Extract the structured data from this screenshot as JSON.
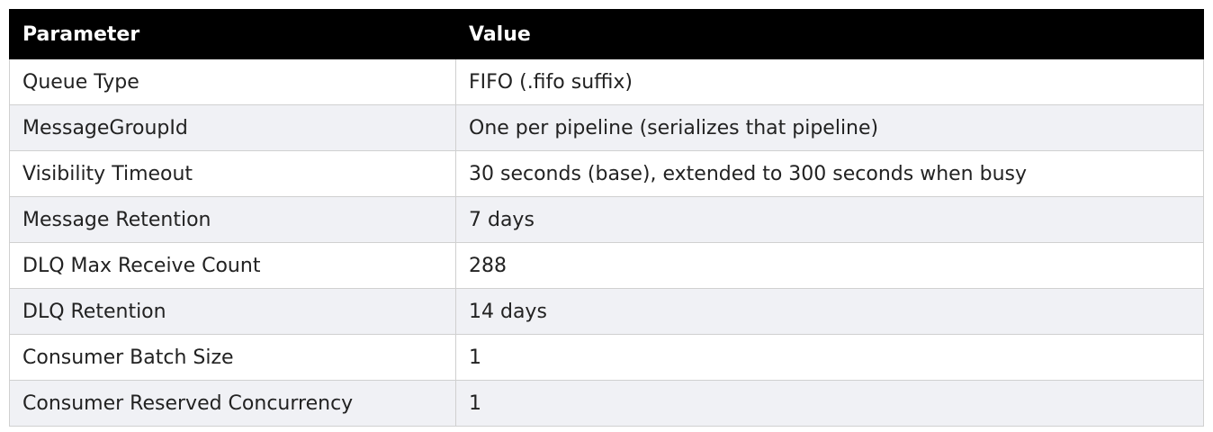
{
  "table": {
    "header": [
      "Parameter",
      "Value"
    ],
    "rows": [
      [
        "Queue Type",
        "FIFO (.fifo suffix)"
      ],
      [
        "MessageGroupId",
        "One per pipeline (serializes that pipeline)"
      ],
      [
        "Visibility Timeout",
        "30 seconds (base), extended to 300 seconds when busy"
      ],
      [
        "Message Retention",
        "7 days"
      ],
      [
        "DLQ Max Receive Count",
        "288"
      ],
      [
        "DLQ Retention",
        "14 days"
      ],
      [
        "Consumer Batch Size",
        "1"
      ],
      [
        "Consumer Reserved Concurrency",
        "1"
      ]
    ]
  }
}
